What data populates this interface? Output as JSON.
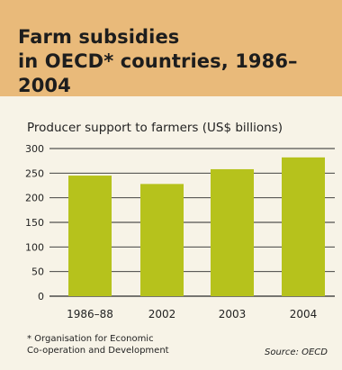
{
  "header": {
    "title_line1": "Farm subsidies",
    "title_line2": "in OECD* countries, 1986–2004"
  },
  "chart_data": {
    "type": "bar",
    "title": "Producer support to farmers (US$ billions)",
    "categories": [
      "1986–88",
      "2002",
      "2003",
      "2004"
    ],
    "values": [
      245,
      228,
      258,
      282
    ],
    "yticks": [
      0,
      50,
      100,
      150,
      200,
      250,
      300
    ],
    "ylim": [
      0,
      300
    ],
    "grid": true,
    "bar_color": "#b6c21c"
  },
  "footer": {
    "footnote_line1": "* Organisation for Economic",
    "footnote_line2": "Co-operation and Development",
    "source": "Source: OECD"
  }
}
